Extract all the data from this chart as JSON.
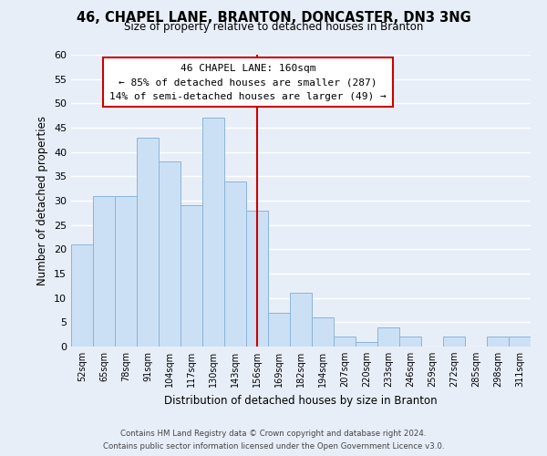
{
  "title": "46, CHAPEL LANE, BRANTON, DONCASTER, DN3 3NG",
  "subtitle": "Size of property relative to detached houses in Branton",
  "xlabel": "Distribution of detached houses by size in Branton",
  "ylabel": "Number of detached properties",
  "bar_labels": [
    "52sqm",
    "65sqm",
    "78sqm",
    "91sqm",
    "104sqm",
    "117sqm",
    "130sqm",
    "143sqm",
    "156sqm",
    "169sqm",
    "182sqm",
    "194sqm",
    "207sqm",
    "220sqm",
    "233sqm",
    "246sqm",
    "259sqm",
    "272sqm",
    "285sqm",
    "298sqm",
    "311sqm"
  ],
  "bar_heights": [
    21,
    31,
    31,
    43,
    38,
    29,
    47,
    34,
    28,
    7,
    11,
    6,
    2,
    1,
    4,
    2,
    0,
    2,
    0,
    2,
    2
  ],
  "bar_color": "#cce0f5",
  "bar_edge_color": "#8ab4d8",
  "vline_x": 8.5,
  "vline_color": "#cc0000",
  "annotation_title": "46 CHAPEL LANE: 160sqm",
  "annotation_line1": "← 85% of detached houses are smaller (287)",
  "annotation_line2": "14% of semi-detached houses are larger (49) →",
  "annotation_box_edge": "#cc0000",
  "annotation_box_face": "#ffffff",
  "ylim": [
    0,
    60
  ],
  "yticks": [
    0,
    5,
    10,
    15,
    20,
    25,
    30,
    35,
    40,
    45,
    50,
    55,
    60
  ],
  "footer_line1": "Contains HM Land Registry data © Crown copyright and database right 2024.",
  "footer_line2": "Contains public sector information licensed under the Open Government Licence v3.0.",
  "bg_color": "#e8eef8",
  "grid_color": "#ffffff"
}
